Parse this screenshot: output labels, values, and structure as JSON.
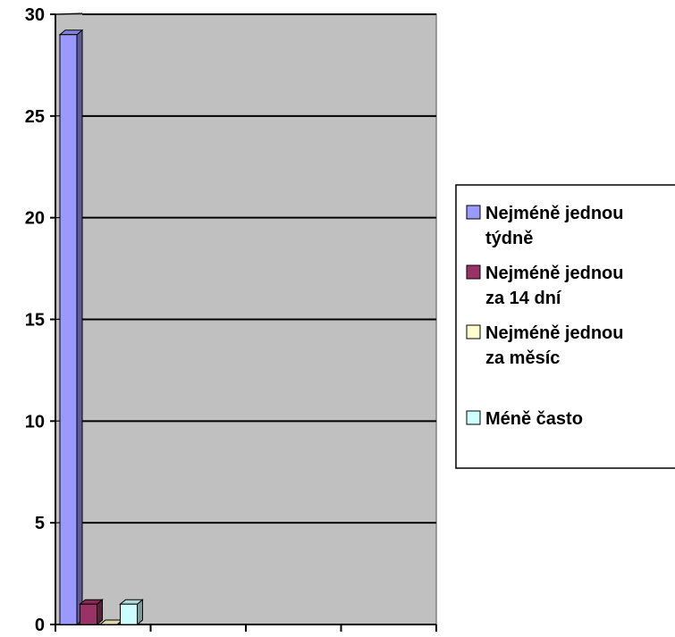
{
  "chart_data": {
    "type": "bar",
    "style": "3d-clustered-column",
    "categories": [
      ""
    ],
    "series": [
      {
        "name": "Nejméně jednou týdně",
        "color": "#9999ff",
        "values": [
          29
        ]
      },
      {
        "name": "Nejméně jednou za 14 dní",
        "color": "#993366",
        "values": [
          1
        ]
      },
      {
        "name": "Nejméně jednou za měsíc",
        "color": "#ffffcc",
        "values": [
          0
        ]
      },
      {
        "name": "Méně často",
        "color": "#ccffff",
        "values": [
          1
        ]
      }
    ],
    "ylim": [
      0,
      30
    ],
    "yticks": [
      "0",
      "5",
      "10",
      "15",
      "20",
      "25",
      "30"
    ],
    "plot_background": "#c0c0c0",
    "grid": true,
    "legend_position": "right",
    "title": "",
    "xlabel": "",
    "ylabel": ""
  },
  "legend": {
    "lines": [
      [
        "Nejméně jednou",
        "týdně"
      ],
      [
        "Nejméně jednou",
        "za 14 dní"
      ],
      [
        "Nejméně jednou",
        "za měsíc"
      ],
      [
        "Méně často"
      ]
    ]
  }
}
